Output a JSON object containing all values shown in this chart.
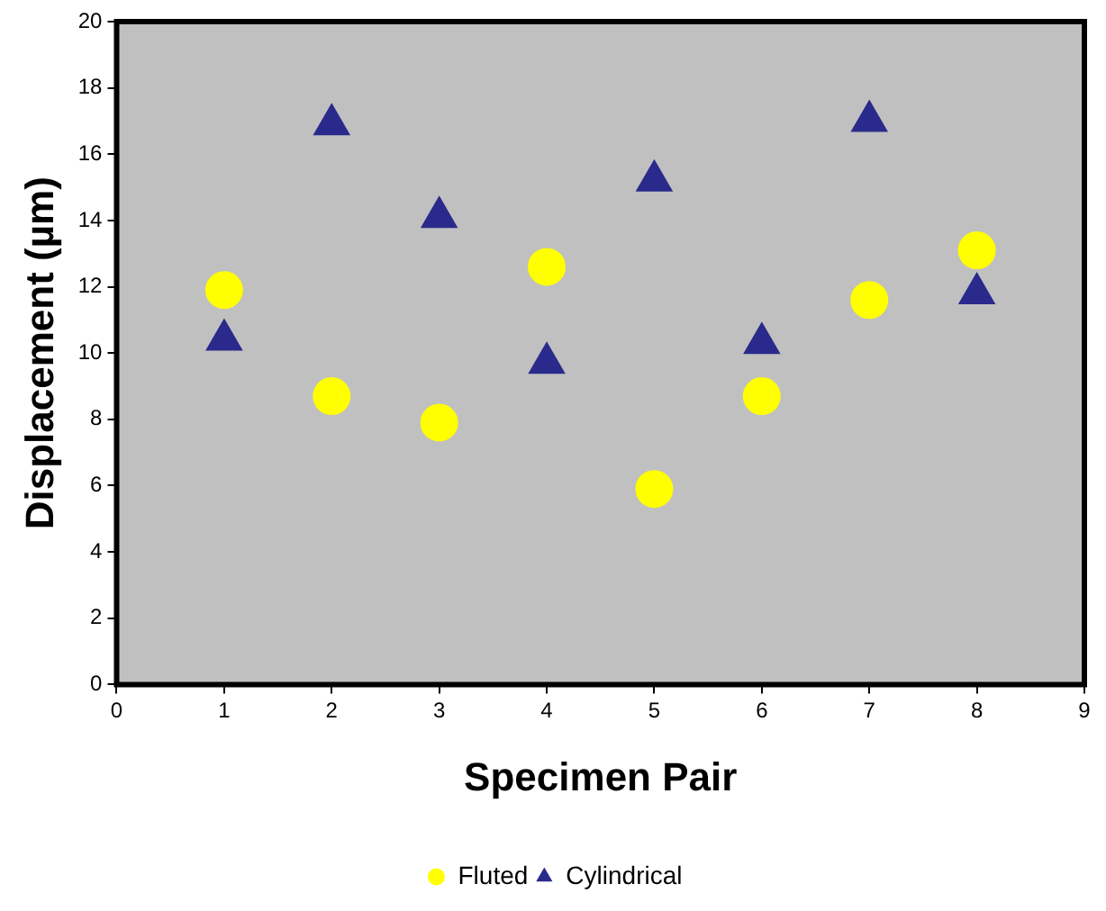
{
  "chart_data": {
    "type": "scatter",
    "xlabel": "Specimen Pair",
    "ylabel": "Displacement (µm)",
    "x": [
      1,
      2,
      3,
      4,
      5,
      6,
      7,
      8
    ],
    "series": [
      {
        "name": "Fluted",
        "color": "#ffff00",
        "marker": "circle",
        "values": [
          11.9,
          8.7,
          7.9,
          12.6,
          5.9,
          8.7,
          11.6,
          13.1
        ]
      },
      {
        "name": "Cylindrical",
        "color": "#2a2a8c",
        "marker": "triangle",
        "values": [
          10.4,
          16.9,
          14.1,
          9.7,
          15.2,
          10.3,
          17.0,
          11.8
        ]
      }
    ],
    "xlim": [
      0,
      9
    ],
    "xticks": [
      0,
      1,
      2,
      3,
      4,
      5,
      6,
      7,
      8,
      9
    ],
    "ylim": [
      0,
      20
    ],
    "yticks": [
      0,
      2,
      4,
      6,
      8,
      10,
      12,
      14,
      16,
      18,
      20
    ],
    "legend": "bottom"
  }
}
